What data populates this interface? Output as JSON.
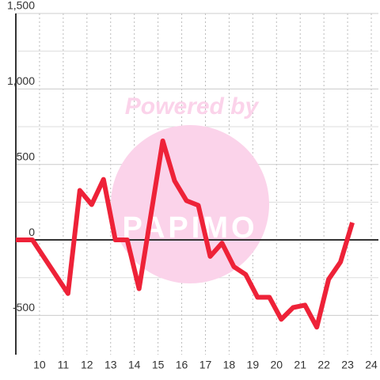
{
  "chart_data": {
    "type": "line",
    "watermark": "Powered by",
    "watermark_logo": "PAPIMO",
    "x": [
      9.0,
      9.7,
      11.2,
      11.7,
      12.2,
      12.7,
      13.2,
      13.7,
      14.2,
      15.2,
      15.7,
      16.2,
      16.7,
      17.2,
      17.7,
      18.2,
      18.7,
      19.2,
      19.7,
      20.2,
      20.7,
      21.2,
      21.7,
      22.2,
      22.7,
      23.2
    ],
    "series": [
      {
        "color": "#ee2238",
        "values": [
          0,
          0,
          -355,
          328,
          234,
          401,
          0,
          0,
          -323,
          656,
          391,
          260,
          229,
          -109,
          -21,
          -177,
          -229,
          -380,
          -380,
          -526,
          -448,
          -432,
          -578,
          -260,
          -146,
          115
        ]
      }
    ],
    "xlim": [
      9.0,
      24.3
    ],
    "xticks": [
      10,
      11,
      12,
      13,
      14,
      15,
      16,
      17,
      18,
      19,
      20,
      21,
      22,
      23,
      24
    ],
    "ylim": [
      -760,
      1500
    ],
    "yticks": [
      {
        "value": -500,
        "label": "-500"
      },
      0,
      500,
      {
        "value": 1000,
        "label": "1,000"
      },
      {
        "value": 1500,
        "label": "1,500"
      }
    ],
    "yminor": [
      -250,
      250,
      750,
      1250
    ],
    "grid": true
  }
}
